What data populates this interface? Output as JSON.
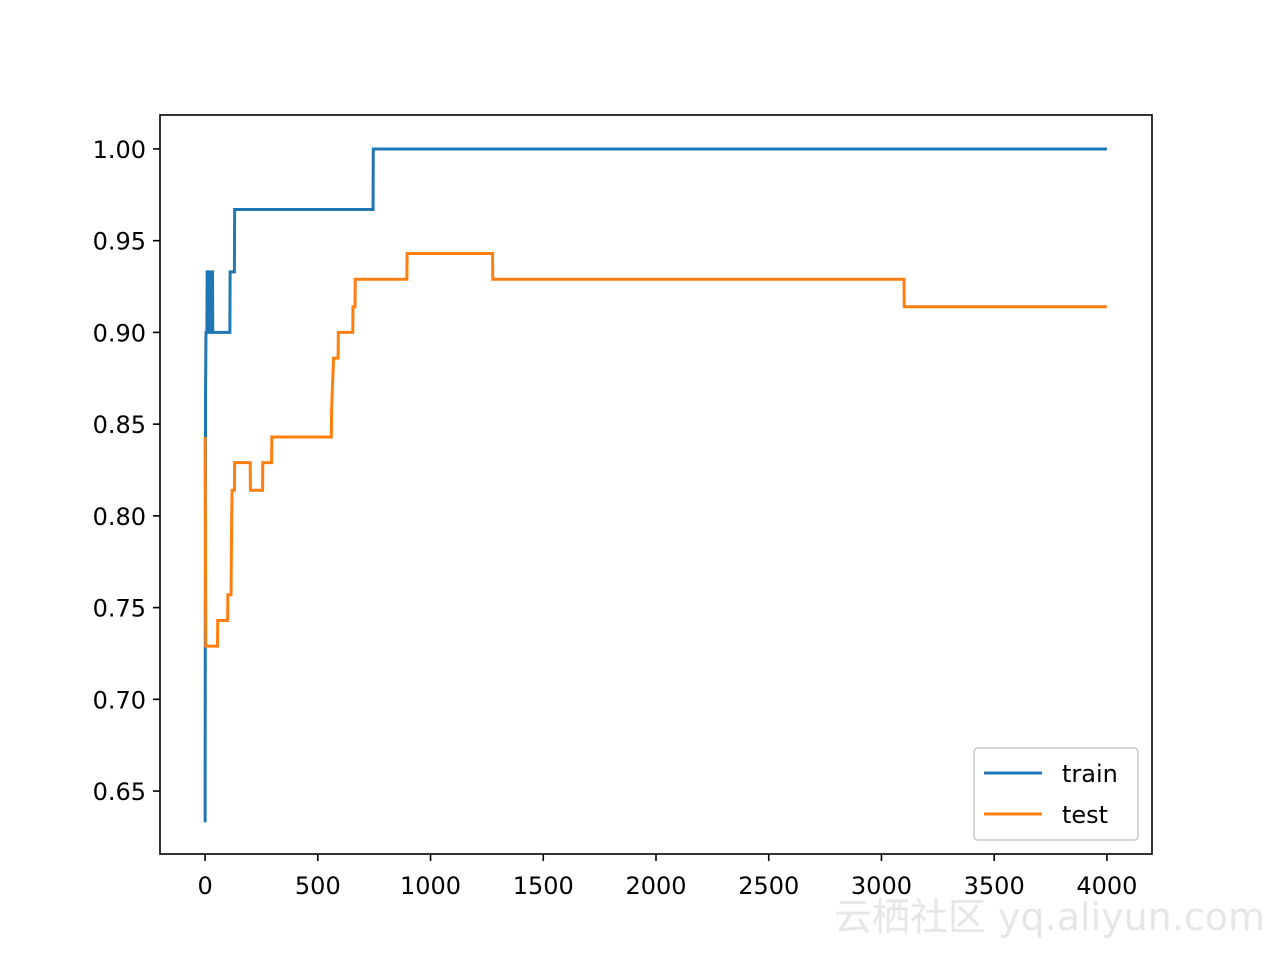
{
  "chart_data": {
    "type": "line",
    "x_train": [
      0,
      2,
      4,
      8,
      9,
      12,
      13,
      20,
      21,
      25,
      26,
      30,
      31,
      33,
      34,
      110,
      111,
      130,
      131,
      745,
      746,
      4000
    ],
    "x_test": [
      0,
      3,
      55,
      56,
      100,
      101,
      115,
      116,
      118,
      120,
      130,
      131,
      200,
      201,
      255,
      256,
      295,
      296,
      560,
      561,
      565,
      570,
      590,
      591,
      655,
      656,
      665,
      666,
      895,
      896,
      1275,
      1276,
      3100,
      3101,
      4000
    ],
    "series": [
      {
        "name": "train",
        "color": "#1f77b4",
        "values": [
          0.633,
          0.867,
          0.9,
          0.9,
          0.933,
          0.933,
          0.9,
          0.9,
          0.933,
          0.933,
          0.9,
          0.9,
          0.933,
          0.933,
          0.9,
          0.9,
          0.933,
          0.933,
          0.967,
          0.967,
          1.0,
          1.0
        ]
      },
      {
        "name": "test",
        "color": "#ff7f0e",
        "values": [
          0.843,
          0.729,
          0.729,
          0.743,
          0.743,
          0.757,
          0.757,
          0.771,
          0.8,
          0.814,
          0.814,
          0.829,
          0.829,
          0.814,
          0.814,
          0.829,
          0.829,
          0.843,
          0.843,
          0.857,
          0.871,
          0.886,
          0.886,
          0.9,
          0.9,
          0.914,
          0.914,
          0.929,
          0.929,
          0.943,
          0.943,
          0.929,
          0.929,
          0.914,
          0.914
        ]
      }
    ],
    "xlim": [
      -200,
      4200
    ],
    "ylim": [
      0.6157,
      1.0185
    ],
    "xticks": [
      0,
      500,
      1000,
      1500,
      2000,
      2500,
      3000,
      3500,
      4000
    ],
    "yticks": [
      0.65,
      {
        "value": 0.7,
        "label": "0.70"
      },
      0.75,
      {
        "value": 0.8,
        "label": "0.80"
      },
      0.85,
      {
        "value": 0.9,
        "label": "0.90"
      },
      0.95,
      {
        "value": 1.0,
        "label": "1.00"
      }
    ],
    "legend": "lower right",
    "watermark": "云栖社区 yq.aliyun.com"
  }
}
